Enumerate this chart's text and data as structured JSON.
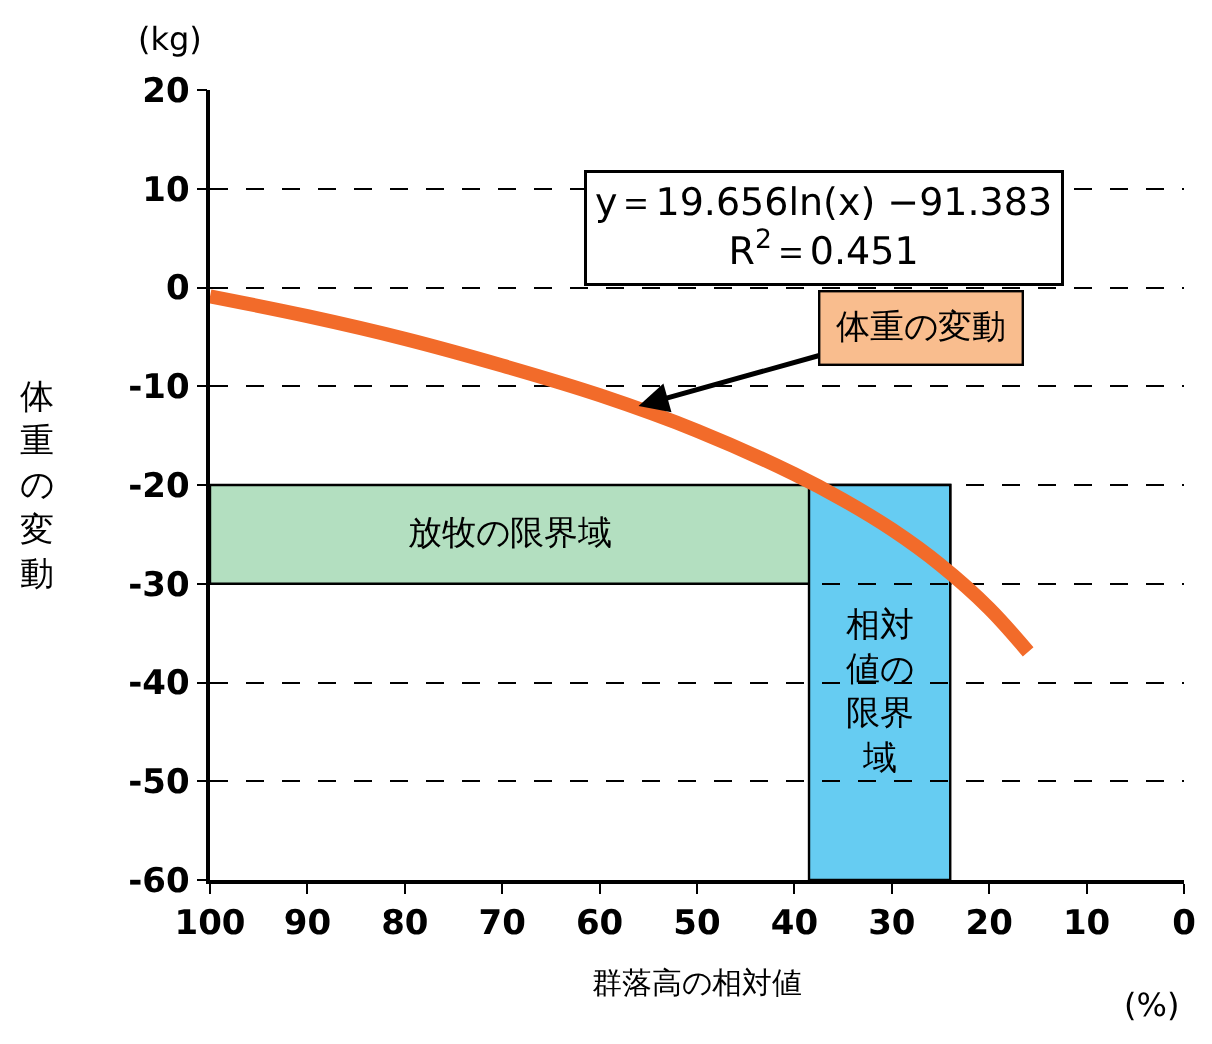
{
  "chart_data": {
    "type": "line",
    "xlabel": "群落高の相対値",
    "ylabel": "体重の変動",
    "x": [
      100,
      90,
      80,
      70,
      60,
      50,
      40,
      35,
      30,
      25,
      20,
      16
    ],
    "series": [
      {
        "color": "#f26b2a",
        "values": [
          -0.9,
          -2.9,
          -5.2,
          -7.9,
          -10.9,
          -14.5,
          -18.9,
          -21.5,
          -24.5,
          -28.1,
          -32.5,
          -36.9
        ]
      }
    ],
    "xlim": [
      100,
      0
    ],
    "xticks": [
      100,
      90,
      80,
      70,
      60,
      50,
      40,
      30,
      20,
      10,
      0
    ],
    "ylim": [
      -60,
      20
    ],
    "yticks": [
      20,
      10,
      0,
      -10,
      -20,
      -30,
      -40,
      -50,
      -60
    ],
    "grid": "y",
    "legend": false,
    "marker": "none",
    "line_style": "solid",
    "bands": [
      {
        "axis": "y",
        "from": -30,
        "to": -20,
        "label": "放牧の限界域",
        "color": "#b3dfc0"
      },
      {
        "axis": "x",
        "from": 38.5,
        "to": 24,
        "label": "相対値の限界域",
        "color": "#66ccf2"
      }
    ],
    "annotations": [
      "y＝19.656ln(x) −91.383",
      "R$^{2}$＝0.451",
      {
        "text": "体重の変動",
        "x": 56,
        "y": -12
      },
      "(kg)",
      "(%)"
    ]
  }
}
